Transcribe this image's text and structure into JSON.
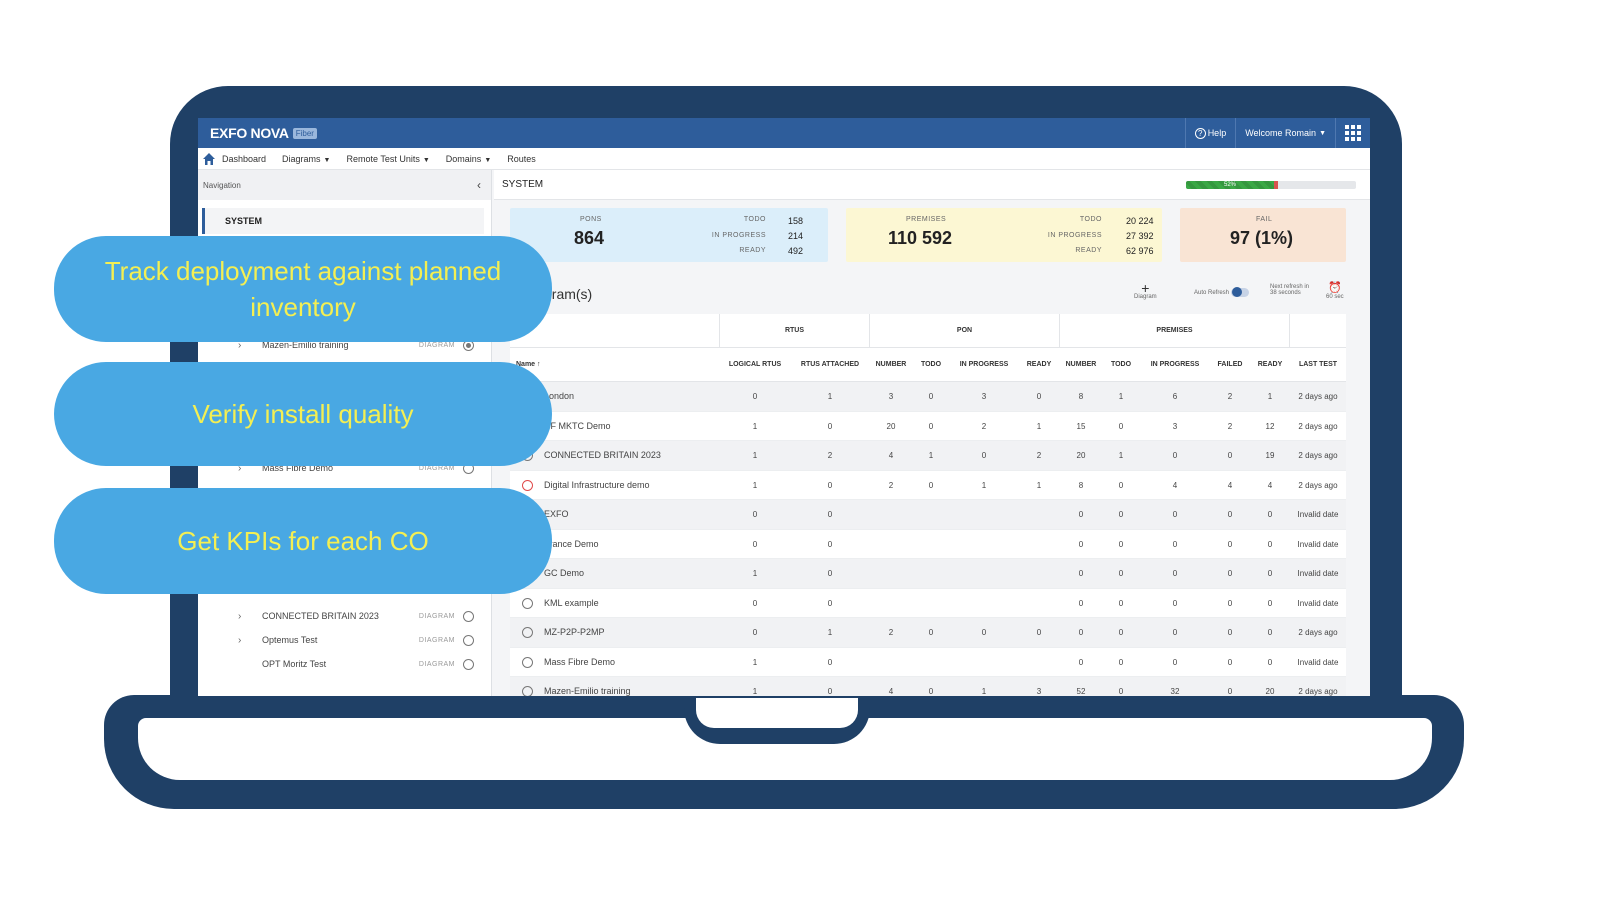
{
  "app": {
    "logo": "EXFO NOVA",
    "logo_sub": "Fiber",
    "help": "Help",
    "welcome": "Welcome Romain"
  },
  "menu": {
    "dashboard": "Dashboard",
    "diagrams": "Diagrams",
    "rtus": "Remote Test Units",
    "domains": "Domains",
    "routes": "Routes"
  },
  "sidebar": {
    "nav_title": "Navigation",
    "system": "SYSTEM",
    "items": [
      {
        "name": "Mazen-Emilio training",
        "type": "DIAGRAM"
      },
      {
        "name": "Mass Fibre Demo",
        "type": "DIAGRAM"
      },
      {
        "name": "CONNECTED BRITAIN 2023",
        "type": "DIAGRAM"
      },
      {
        "name": "Optemus Test",
        "type": "DIAGRAM"
      },
      {
        "name": "OPT Moritz Test",
        "type": "DIAGRAM"
      }
    ]
  },
  "system_header": "SYSTEM",
  "progress": {
    "label": "52%",
    "value": 0.52
  },
  "kpis": {
    "pons": {
      "label": "PONS",
      "value": "864",
      "todo_label": "TODO",
      "todo": "158",
      "progress_label": "IN PROGRESS",
      "progress": "214",
      "ready_label": "READY",
      "ready": "492"
    },
    "premises": {
      "label": "PREMISES",
      "value": "110 592",
      "todo_label": "TODO",
      "todo": "20 224",
      "progress_label": "IN PROGRESS",
      "progress": "27 392",
      "ready_label": "READY",
      "ready": "62 976"
    },
    "fail": {
      "label": "FAIL",
      "value": "97 (1%)"
    }
  },
  "diagrams_title": "gram(s)",
  "tools": {
    "diagram": "Diagram",
    "auto_refresh": "Auto Refresh",
    "next_refresh": "Next refresh in",
    "next_refresh_val": "38 seconds",
    "interval": "60 sec"
  },
  "table": {
    "groups": {
      "rtus": "RTUS",
      "pon": "PON",
      "premises": "PREMISES"
    },
    "headers": [
      "Name ↑",
      "LOGICAL RTUS",
      "RTUS ATTACHED",
      "NUMBER",
      "TODO",
      "IN PROGRESS",
      "READY",
      "NUMBER",
      "TODO",
      "IN PROGRESS",
      "FAILED",
      "READY",
      "LAST TEST"
    ],
    "rows": [
      [
        "London",
        "0",
        "1",
        "3",
        "0",
        "3",
        "0",
        "8",
        "1",
        "6",
        "2",
        "1",
        "2 days ago"
      ],
      [
        "CF MKTC Demo",
        "1",
        "0",
        "20",
        "0",
        "2",
        "1",
        "15",
        "0",
        "3",
        "2",
        "12",
        "2 days ago"
      ],
      [
        "CONNECTED BRITAIN 2023",
        "1",
        "2",
        "4",
        "1",
        "0",
        "2",
        "20",
        "1",
        "0",
        "0",
        "19",
        "2 days ago"
      ],
      [
        "Digital Infrastructure demo",
        "1",
        "0",
        "2",
        "0",
        "1",
        "1",
        "8",
        "0",
        "4",
        "4",
        "4",
        "2 days ago"
      ],
      [
        "EXFO",
        "0",
        "0",
        "",
        "",
        "",
        "",
        "0",
        "0",
        "0",
        "0",
        "0",
        "Invalid date"
      ],
      [
        "France Demo",
        "0",
        "0",
        "",
        "",
        "",
        "",
        "0",
        "0",
        "0",
        "0",
        "0",
        "Invalid date"
      ],
      [
        "GC Demo",
        "1",
        "0",
        "",
        "",
        "",
        "",
        "0",
        "0",
        "0",
        "0",
        "0",
        "Invalid date"
      ],
      [
        "KML example",
        "0",
        "0",
        "",
        "",
        "",
        "",
        "0",
        "0",
        "0",
        "0",
        "0",
        "Invalid date"
      ],
      [
        "MZ-P2P-P2MP",
        "0",
        "1",
        "2",
        "0",
        "0",
        "0",
        "0",
        "0",
        "0",
        "0",
        "0",
        "2 days ago"
      ],
      [
        "Mass Fibre Demo",
        "1",
        "0",
        "",
        "",
        "",
        "",
        "0",
        "0",
        "0",
        "0",
        "0",
        "Invalid date"
      ],
      [
        "Mazen-Emilio training",
        "1",
        "0",
        "4",
        "0",
        "1",
        "3",
        "52",
        "0",
        "32",
        "0",
        "20",
        "2 days ago"
      ]
    ]
  },
  "callouts": [
    "Track deployment against planned inventory",
    "Verify install quality",
    "Get KPIs for each CO"
  ],
  "colors": {
    "frame": "#1f4066",
    "appbar": "#2e5d9b",
    "callout_bg": "#49a8e3",
    "callout_text": "#f4ef52"
  }
}
